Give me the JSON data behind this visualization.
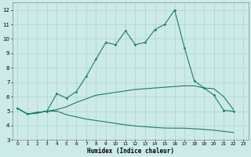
{
  "xlabel": "Humidex (Indice chaleur)",
  "bg_color": "#cceae8",
  "grid_color": "#b0d8d5",
  "line_color": "#1e7b6e",
  "xlim": [
    -0.5,
    23.5
  ],
  "ylim": [
    3,
    12.5
  ],
  "yticks": [
    3,
    4,
    5,
    6,
    7,
    8,
    9,
    10,
    11,
    12
  ],
  "xticks": [
    0,
    1,
    2,
    3,
    4,
    5,
    6,
    7,
    8,
    9,
    10,
    11,
    12,
    13,
    14,
    15,
    16,
    17,
    18,
    19,
    20,
    21,
    22,
    23
  ],
  "line1_x": [
    0,
    1,
    2,
    3,
    4,
    5,
    6,
    7,
    8,
    9,
    10,
    11,
    12,
    13,
    14,
    15,
    16,
    17,
    18,
    19,
    20,
    21,
    22
  ],
  "line1_y": [
    5.2,
    4.8,
    4.9,
    5.0,
    6.2,
    5.9,
    6.35,
    7.4,
    8.6,
    9.75,
    9.6,
    10.55,
    9.6,
    9.75,
    10.65,
    11.0,
    12.0,
    9.4,
    7.1,
    6.6,
    6.1,
    5.05,
    5.0
  ],
  "line2_x": [
    0,
    1,
    2,
    3,
    4,
    5,
    6,
    7,
    8,
    9,
    10,
    11,
    12,
    13,
    14,
    15,
    16,
    17,
    18,
    19,
    20,
    21,
    22
  ],
  "line2_y": [
    5.2,
    4.8,
    4.9,
    5.0,
    5.1,
    5.3,
    5.6,
    5.85,
    6.1,
    6.2,
    6.3,
    6.4,
    6.5,
    6.55,
    6.6,
    6.65,
    6.7,
    6.75,
    6.75,
    6.6,
    6.55,
    6.0,
    5.1
  ],
  "line3_x": [
    0,
    1,
    2,
    3,
    4,
    5,
    6,
    7,
    8,
    9,
    10,
    11,
    12,
    13,
    14,
    15,
    16,
    17,
    18,
    19,
    20,
    21,
    22
  ],
  "line3_y": [
    5.2,
    4.8,
    4.85,
    5.0,
    5.0,
    4.75,
    4.6,
    4.45,
    4.35,
    4.25,
    4.15,
    4.05,
    3.97,
    3.92,
    3.87,
    3.83,
    3.82,
    3.82,
    3.78,
    3.73,
    3.68,
    3.6,
    3.52
  ]
}
